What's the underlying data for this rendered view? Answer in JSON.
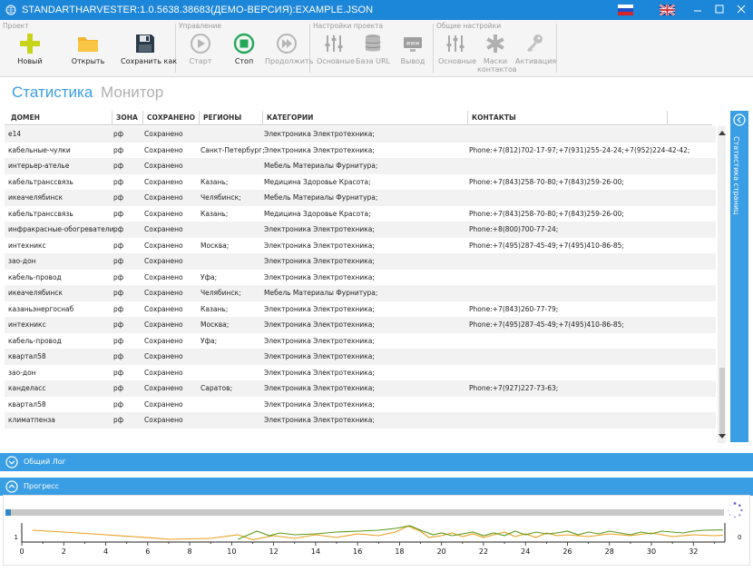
{
  "window": {
    "title": "STANDARTHARVESTER:1.0.5638.38683(ДЕМО-ВЕРСИЯ):EXAMPLE.JSON",
    "flags": [
      "flag-ru-icon",
      "flag-uk-icon"
    ],
    "controls": [
      "minimize-icon",
      "maximize-icon",
      "close-icon"
    ]
  },
  "ribbon": {
    "groups": {
      "project": "Проект",
      "control": "Управление",
      "project_settings": "Настройки проекта",
      "general_settings": "Общие настройки"
    },
    "buttons": {
      "new": "Новый",
      "open": "Открыть",
      "save_as": "Сохранить как",
      "start": "Старт",
      "stop": "Стоп",
      "continue": "Продолжить",
      "main_project": "Основные",
      "base_url": "База URL",
      "output": "Вывод",
      "main_general": "Основные",
      "contact_masks_1": "Маски",
      "contact_masks_2": "контактов",
      "activation": "Активация",
      "www_badge": "www"
    }
  },
  "view_tabs": {
    "statistics": "Статистика",
    "monitor": "Монитор"
  },
  "grid": {
    "columns": [
      "ДОМЕН",
      "ЗОНА",
      "СОХРАНЕНО",
      "РЕГИОНЫ",
      "КАТЕГОРИИ",
      "КОНТАКТЫ"
    ],
    "rows": [
      [
        "e14",
        "рф",
        "Сохранено",
        "",
        "Электроника Электротехника;",
        ""
      ],
      [
        "кабельные-чулки",
        "рф",
        "Сохранено",
        "Санкт-Петербург;",
        "Электроника Электротехника;",
        "Phone:+7(812)702-17-97;+7(931)255-24-24;+7(952)224-42-42;"
      ],
      [
        "интерьер-ателье",
        "рф",
        "Сохранено",
        "",
        "Мебель Материалы Фурнитура;",
        ""
      ],
      [
        "кабельтранссвязь",
        "рф",
        "Сохранено",
        "Казань;",
        "Медицина Здоровье Красота;",
        "Phone:+7(843)258-70-80;+7(843)259-26-00;"
      ],
      [
        "икеачелябинск",
        "рф",
        "Сохранено",
        "Челябинск;",
        "Мебель Материалы Фурнитура;",
        ""
      ],
      [
        "кабельтранссвязь",
        "рф",
        "Сохранено",
        "Казань;",
        "Медицина Здоровье Красота;",
        "Phone:+7(843)258-70-80;+7(843)259-26-00;"
      ],
      [
        "инфракрасные-обогреватели",
        "рф",
        "Сохранено",
        "",
        "Электроника Электротехника;",
        "Phone:+8(800)700-77-24;"
      ],
      [
        "интехникс",
        "рф",
        "Сохранено",
        "Москва;",
        "Электроника Электротехника;",
        "Phone:+7(495)287-45-49;+7(495)410-86-85;"
      ],
      [
        "зао-дон",
        "рф",
        "Сохранено",
        "",
        "Электроника Электротехника;",
        ""
      ],
      [
        "кабель-провод",
        "рф",
        "Сохранено",
        "Уфа;",
        "Электроника Электротехника;",
        ""
      ],
      [
        "икеачелябинск",
        "рф",
        "Сохранено",
        "Челябинск;",
        "Мебель Материалы Фурнитура;",
        ""
      ],
      [
        "казаньэнергоснаб",
        "рф",
        "Сохранено",
        "Казань;",
        "Электроника Электротехника;",
        "Phone:+7(843)260-77-79;"
      ],
      [
        "интехникс",
        "рф",
        "Сохранено",
        "Москва;",
        "Электроника Электротехника;",
        "Phone:+7(495)287-45-49;+7(495)410-86-85;"
      ],
      [
        "кабель-провод",
        "рф",
        "Сохранено",
        "Уфа;",
        "Электроника Электротехника;",
        ""
      ],
      [
        "квартал58",
        "рф",
        "Сохранено",
        "",
        "Электроника Электротехника;",
        ""
      ],
      [
        "зао-дон",
        "рф",
        "Сохранено",
        "",
        "Электроника Электротехника;",
        ""
      ],
      [
        "канделасс",
        "рф",
        "Сохранено",
        "Саратов;",
        "Электроника Электротехника;",
        "Phone:+7(927)227-73-63;"
      ],
      [
        "квартал58",
        "рф",
        "Сохранено",
        "",
        "Электроника Электротехника;",
        ""
      ],
      [
        "климатпенза",
        "рф",
        "Сохранено",
        "",
        "Электроника Электротехника;",
        ""
      ]
    ]
  },
  "side_panel": {
    "label": "Статистика страниц"
  },
  "expanders": {
    "log": "Общий Лог",
    "progress": "Прогресс"
  },
  "progress": {
    "value": 0.008
  },
  "chart_data": {
    "type": "line",
    "x_ticks": [
      "0",
      "2",
      "4",
      "6",
      "8",
      "10",
      "12",
      "14",
      "16",
      "18",
      "20",
      "22",
      "24",
      "26",
      "28",
      "30",
      "32"
    ],
    "y_left_tick": "1",
    "y_right_tick": "0",
    "xlim": [
      0,
      33.5
    ],
    "ylim": [
      0,
      1
    ],
    "series": [
      {
        "name": "orange",
        "color": "#e8a020",
        "x": [
          0.5,
          2,
          4,
          6.2,
          7,
          9,
          10.3,
          11,
          12,
          13,
          14,
          15,
          16,
          17,
          17.8,
          18.4,
          19,
          19.4,
          20,
          20.5,
          21,
          21.5,
          22,
          22.5,
          23,
          23.5,
          24,
          24.5,
          25,
          25.5,
          26,
          27,
          28,
          29,
          30,
          31,
          32,
          33,
          33.4
        ],
        "y": [
          0.6,
          0.5,
          0.35,
          0.18,
          0.1,
          0.15,
          0.35,
          0.08,
          0.3,
          0.15,
          0.35,
          0.2,
          0.4,
          0.3,
          0.5,
          0.82,
          0.55,
          0.2,
          0.3,
          0.45,
          0.25,
          0.4,
          0.2,
          0.35,
          0.5,
          0.25,
          0.4,
          0.2,
          0.45,
          0.3,
          0.35,
          0.25,
          0.4,
          0.3,
          0.45,
          0.25,
          0.35,
          0.3,
          0.32
        ]
      },
      {
        "name": "green",
        "color": "#5b9a1c",
        "x": [
          10.3,
          10.8,
          11.2,
          11.8,
          12.3,
          13,
          14,
          15,
          16,
          17,
          17.8,
          18.5,
          19,
          19.6,
          20,
          20.5,
          21,
          21.5,
          22,
          22.5,
          23,
          23.5,
          24,
          24.5,
          25,
          25.5,
          26,
          26.5,
          27,
          27.5,
          28,
          28.5,
          29,
          29.5,
          30,
          30.5,
          31,
          31.5,
          32,
          32.5,
          33.4
        ],
        "y": [
          0.1,
          0.35,
          0.55,
          0.3,
          0.45,
          0.35,
          0.4,
          0.5,
          0.55,
          0.6,
          0.7,
          0.85,
          0.6,
          0.35,
          0.45,
          0.3,
          0.4,
          0.5,
          0.3,
          0.45,
          0.3,
          0.55,
          0.35,
          0.5,
          0.4,
          0.45,
          0.55,
          0.35,
          0.5,
          0.4,
          0.55,
          0.45,
          0.35,
          0.5,
          0.4,
          0.55,
          0.5,
          0.45,
          0.55,
          0.6,
          0.62
        ]
      }
    ]
  },
  "colors": {
    "accent": "#3a9ee4",
    "titlebar": "#1c86d8"
  }
}
